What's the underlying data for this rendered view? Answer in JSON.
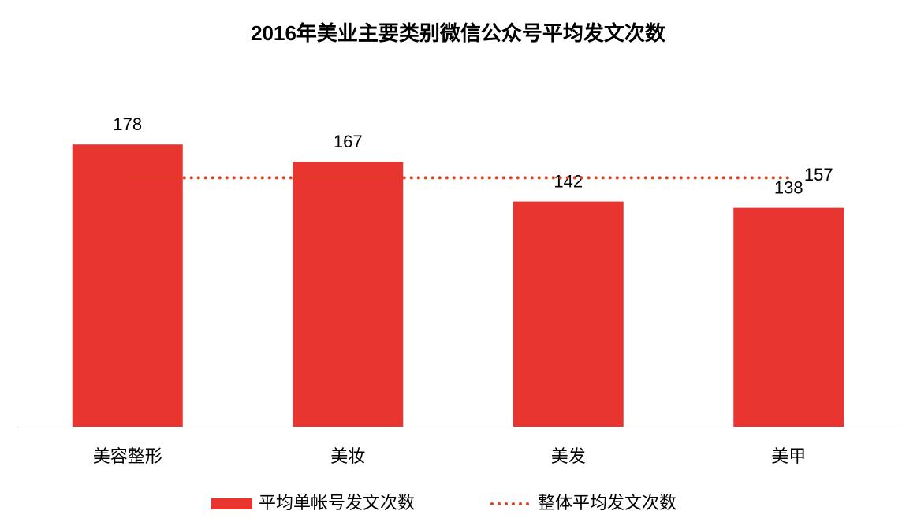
{
  "chart_data": {
    "type": "bar",
    "title": "2016年美业主要类别微信公众号平均发文次数",
    "categories": [
      "美容整形",
      "美妆",
      "美发",
      "美甲"
    ],
    "series": [
      {
        "name": "平均单帐号发文次数",
        "type": "bar",
        "color": "#e8352f",
        "values": [
          178,
          167,
          142,
          138
        ]
      },
      {
        "name": "整体平均发文次数",
        "type": "line",
        "color": "#d9431e",
        "values": [
          157,
          157,
          157,
          157
        ]
      }
    ],
    "ylim": [
      0,
      200
    ],
    "legend": "bottom"
  }
}
